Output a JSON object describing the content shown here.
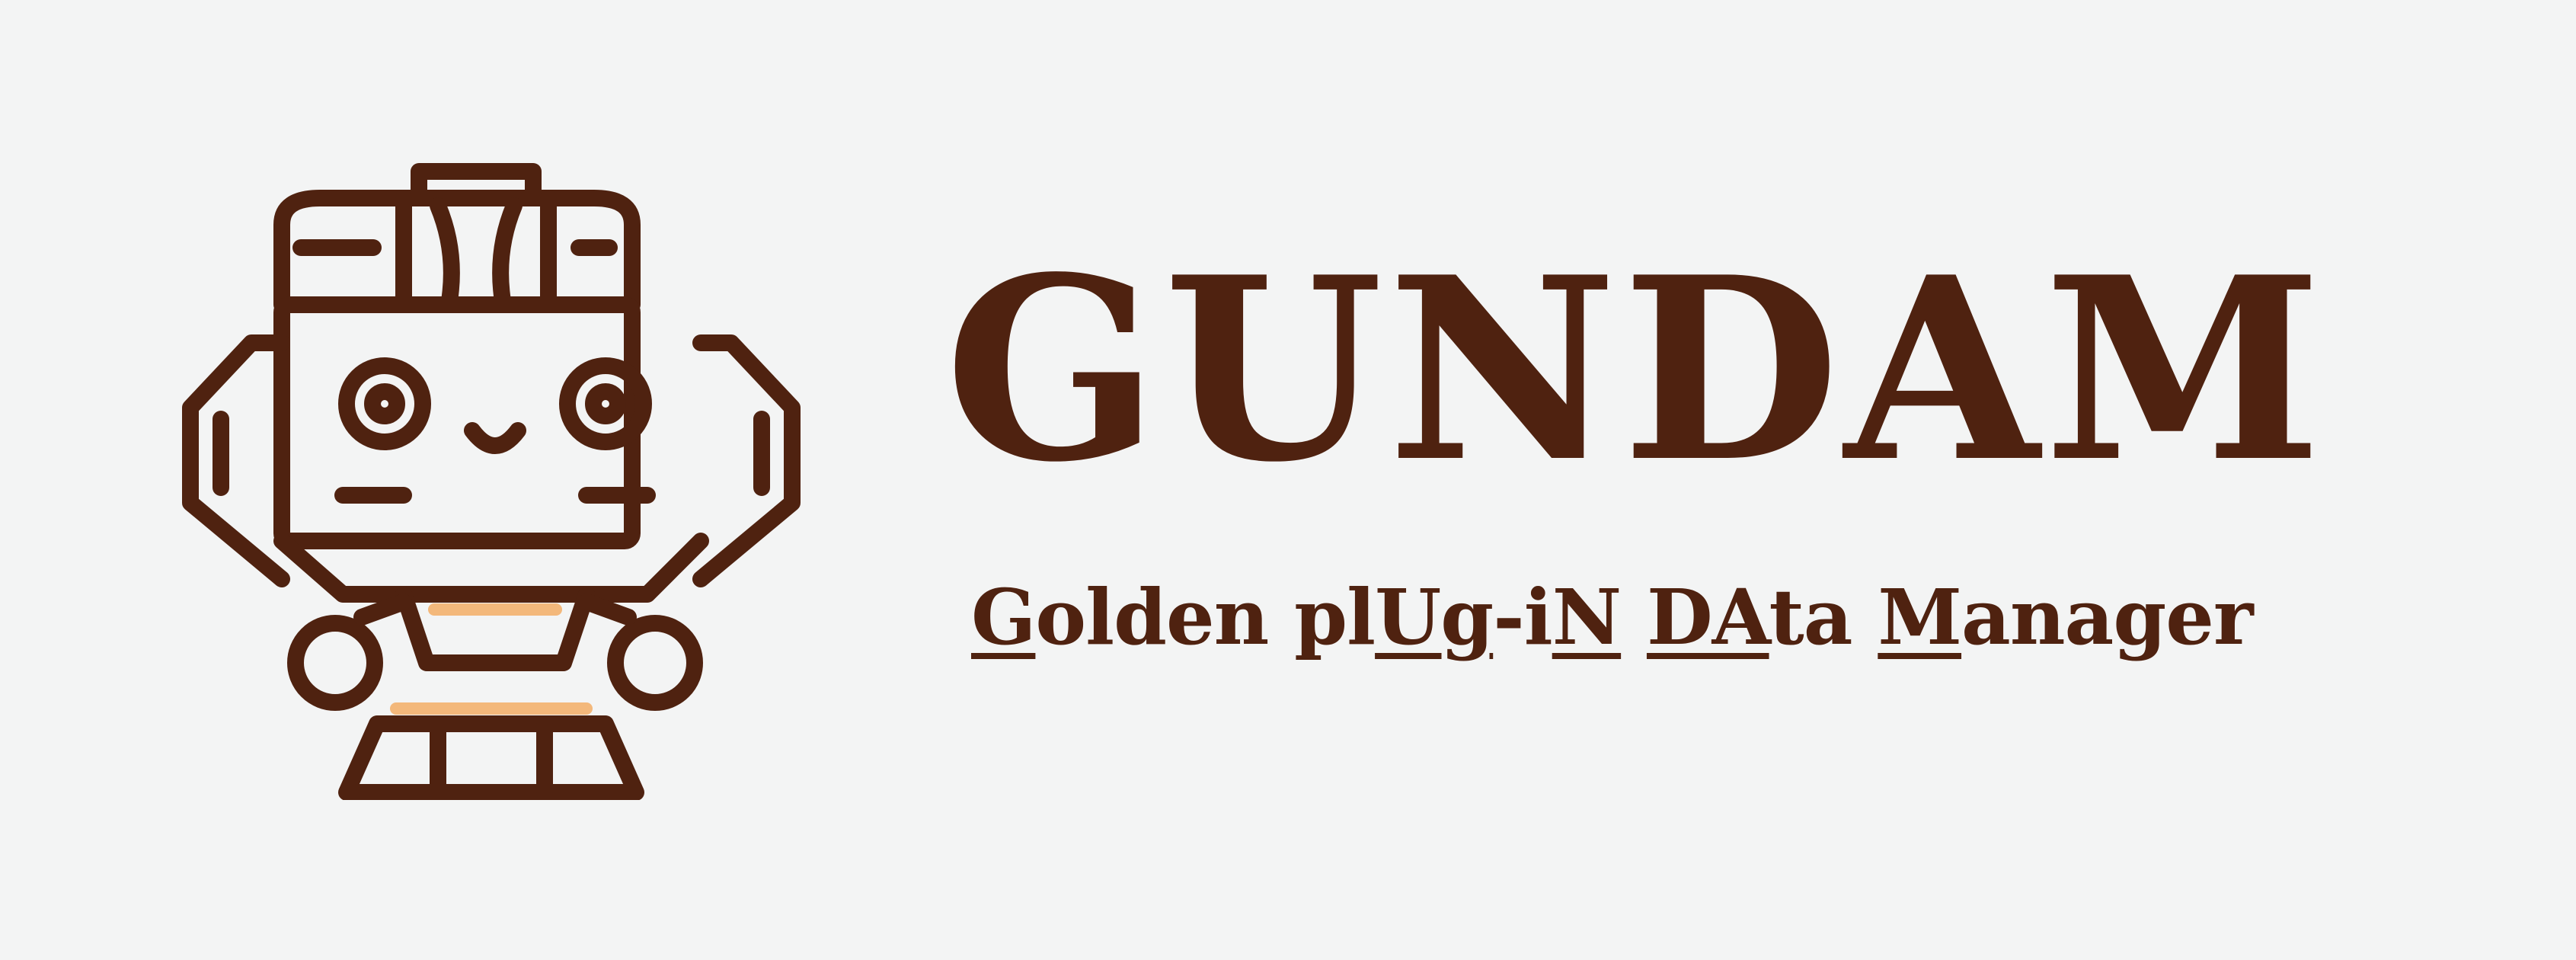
{
  "logo": {
    "title": "GUNDAM",
    "subtitle_parts": [
      {
        "text": "G",
        "underline": true
      },
      {
        "text": "olden pl",
        "underline": false
      },
      {
        "text": "Ug",
        "underline": true
      },
      {
        "text": "-i",
        "underline": false
      },
      {
        "text": "N",
        "underline": true
      },
      {
        "text": " ",
        "underline": false
      },
      {
        "text": "DA",
        "underline": true
      },
      {
        "text": "ta ",
        "underline": false
      },
      {
        "text": "M",
        "underline": true
      },
      {
        "text": "anager",
        "underline": false
      }
    ],
    "icon": "robot-mascot-icon",
    "colors": {
      "brand_brown": "#4f2210",
      "accent_orange": "#f3b87b",
      "background": "#f3f4f4"
    }
  }
}
